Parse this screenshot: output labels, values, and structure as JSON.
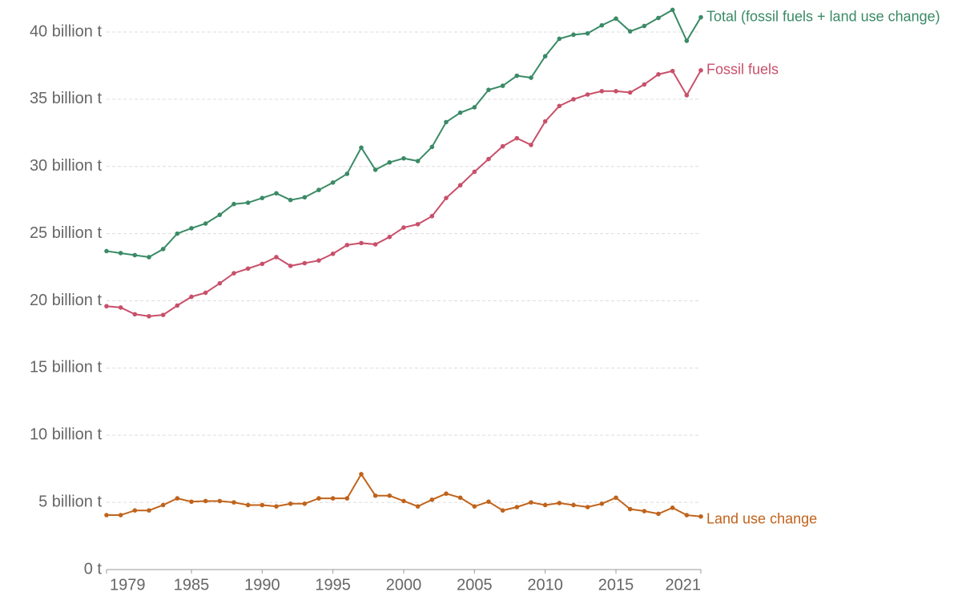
{
  "chart_data": {
    "type": "line",
    "x": [
      1979,
      1980,
      1981,
      1982,
      1983,
      1984,
      1985,
      1986,
      1987,
      1988,
      1989,
      1990,
      1991,
      1992,
      1993,
      1994,
      1995,
      1996,
      1997,
      1998,
      1999,
      2000,
      2001,
      2002,
      2003,
      2004,
      2005,
      2006,
      2007,
      2008,
      2009,
      2010,
      2011,
      2012,
      2013,
      2014,
      2015,
      2016,
      2017,
      2018,
      2019,
      2020,
      2021
    ],
    "series": [
      {
        "name": "Total (fossil fuels + land use change)",
        "color": "#3a8a66",
        "values": [
          23.7,
          23.55,
          23.4,
          23.25,
          23.85,
          25.0,
          25.4,
          25.75,
          26.4,
          27.2,
          27.3,
          27.65,
          28.0,
          27.5,
          27.7,
          28.25,
          28.8,
          29.45,
          31.4,
          29.75,
          30.3,
          30.6,
          30.4,
          31.45,
          33.3,
          34.0,
          34.4,
          35.7,
          36.0,
          36.75,
          36.6,
          38.2,
          39.5,
          39.8,
          39.9,
          40.5,
          41.0,
          40.05,
          40.45,
          41.05,
          41.65,
          39.35,
          41.1
        ]
      },
      {
        "name": "Fossil fuels",
        "color": "#c8506a",
        "values": [
          19.6,
          19.5,
          19.0,
          18.85,
          18.95,
          19.65,
          20.3,
          20.6,
          21.3,
          22.05,
          22.4,
          22.75,
          23.25,
          22.6,
          22.8,
          23.0,
          23.5,
          24.15,
          24.3,
          24.2,
          24.75,
          25.45,
          25.7,
          26.3,
          27.65,
          28.6,
          29.6,
          30.55,
          31.5,
          32.1,
          31.6,
          33.35,
          34.5,
          35.0,
          35.35,
          35.6,
          35.6,
          35.5,
          36.1,
          36.85,
          37.1,
          35.3,
          37.15
        ]
      },
      {
        "name": "Land use change",
        "color": "#c0631b",
        "values": [
          4.05,
          4.05,
          4.4,
          4.4,
          4.8,
          5.3,
          5.05,
          5.1,
          5.1,
          5.0,
          4.8,
          4.8,
          4.7,
          4.9,
          4.9,
          5.3,
          5.3,
          5.3,
          7.1,
          5.5,
          5.5,
          5.1,
          4.7,
          5.2,
          5.65,
          5.35,
          4.7,
          5.05,
          4.4,
          4.65,
          5.0,
          4.8,
          4.95,
          4.8,
          4.65,
          4.9,
          5.35,
          4.5,
          4.35,
          4.15,
          4.6,
          4.05,
          3.95
        ]
      }
    ],
    "xlim": [
      1979,
      2021
    ],
    "xticks": [
      1979,
      1985,
      1990,
      1995,
      2000,
      2005,
      2010,
      2015,
      2021
    ],
    "ylim": [
      0,
      40
    ],
    "yticks": [
      {
        "value": 0,
        "label": "0 t"
      },
      {
        "value": 5,
        "label": "5 billion t"
      },
      {
        "value": 10,
        "label": "10 billion t"
      },
      {
        "value": 15,
        "label": "15 billion t"
      },
      {
        "value": 20,
        "label": "20 billion t"
      },
      {
        "value": 25,
        "label": "25 billion t"
      },
      {
        "value": 30,
        "label": "30 billion t"
      },
      {
        "value": 35,
        "label": "35 billion t"
      },
      {
        "value": 40,
        "label": "40 billion t"
      }
    ],
    "grid": true
  }
}
